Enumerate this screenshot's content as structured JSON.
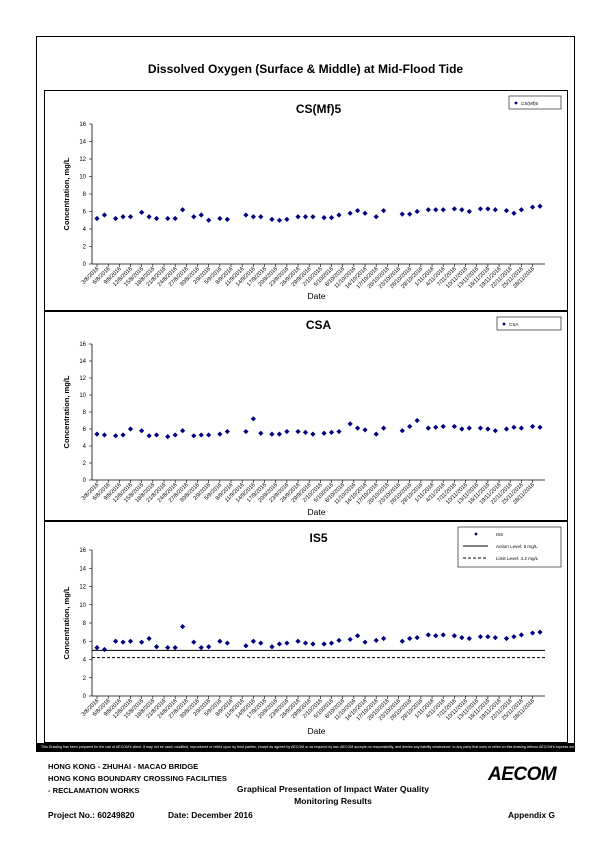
{
  "title": "Dissolved Oxygen (Surface & Middle) at Mid-Flood Tide",
  "disclaimer": "This Drawing has been prepared for the use of AECOM's client. It may not be used, modified, reproduced or relied upon by third parties, except as agreed by AECOM or as required by law. AECOM accepts no responsibility, and denies any liability whatsoever, to any party that uses or relies on this drawing without AECOM's express written consent.",
  "footer": {
    "line1": "HONG KONG - ZHUHAI - MACAO BRIDGE",
    "line2": "HONG KONG BOUNDARY CROSSING FACILITIES",
    "line3": "- RECLAMATION WORKS",
    "center1": "Graphical Presentation of Impact Water Quality",
    "center2": "Monitoring Results",
    "project": "Project No.: 60249820",
    "date": "Date: December 2016",
    "appendix": "Appendix G",
    "logo": "AECOM"
  },
  "colors": {
    "marker": "#000080",
    "line": "#000000",
    "border": "#000000"
  },
  "chart_data": [
    {
      "type": "scatter",
      "title": "CS(Mf)5",
      "xlabel": "Date",
      "ylabel": "Concentration, mg/L",
      "ylim": [
        0,
        16
      ],
      "yticks": [
        0,
        2,
        4,
        6,
        8,
        10,
        12,
        14,
        16
      ],
      "grid": false,
      "legend_position": "top-right",
      "tick_labels": [
        "3/8/2016",
        "6/8/2016",
        "9/8/2016",
        "12/8/2016",
        "15/8/2016",
        "18/8/2016",
        "21/8/2016",
        "24/8/2016",
        "27/8/2016",
        "30/8/2016",
        "2/9/2016",
        "5/9/2016",
        "8/9/2016",
        "11/9/2016",
        "14/9/2016",
        "17/9/2016",
        "20/9/2016",
        "23/9/2016",
        "26/9/2016",
        "29/9/2016",
        "2/10/2016",
        "5/10/2016",
        "8/10/2016",
        "11/10/2016",
        "14/10/2016",
        "17/10/2016",
        "20/10/2016",
        "23/10/2016",
        "26/10/2016",
        "29/10/2016",
        "1/11/2016",
        "4/11/2016",
        "7/11/2016",
        "10/11/2016",
        "13/11/2016",
        "16/11/2016",
        "19/11/2016",
        "22/11/2016",
        "25/11/2016",
        "28/11/2016"
      ],
      "series": [
        {
          "name": "CS(Mf)5",
          "marker": "diamond",
          "x": [
            "3/8/2016",
            "5/8/2016",
            "8/8/2016",
            "10/8/2016",
            "12/8/2016",
            "15/8/2016",
            "17/8/2016",
            "19/8/2016",
            "22/8/2016",
            "24/8/2016",
            "26/8/2016",
            "29/8/2016",
            "31/8/2016",
            "2/9/2016",
            "5/9/2016",
            "7/9/2016",
            "12/9/2016",
            "14/9/2016",
            "16/9/2016",
            "19/9/2016",
            "21/9/2016",
            "23/9/2016",
            "26/9/2016",
            "28/9/2016",
            "30/9/2016",
            "3/10/2016",
            "5/10/2016",
            "7/10/2016",
            "10/10/2016",
            "12/10/2016",
            "14/10/2016",
            "17/10/2016",
            "19/10/2016",
            "24/10/2016",
            "26/10/2016",
            "28/10/2016",
            "31/10/2016",
            "2/11/2016",
            "4/11/2016",
            "7/11/2016",
            "9/11/2016",
            "11/11/2016",
            "14/11/2016",
            "16/11/2016",
            "18/11/2016",
            "21/11/2016",
            "23/11/2016",
            "25/11/2016",
            "28/11/2016",
            "30/11/2016"
          ],
          "y": [
            5.2,
            5.6,
            5.2,
            5.4,
            5.4,
            5.9,
            5.4,
            5.2,
            5.2,
            5.2,
            6.2,
            5.4,
            5.6,
            5.0,
            5.2,
            5.1,
            5.6,
            5.4,
            5.4,
            5.1,
            5.0,
            5.1,
            5.4,
            5.4,
            5.4,
            5.3,
            5.3,
            5.6,
            5.8,
            6.1,
            5.8,
            5.4,
            6.1,
            5.7,
            5.7,
            6.0,
            6.2,
            6.2,
            6.2,
            6.3,
            6.2,
            6.0,
            6.3,
            6.3,
            6.2,
            6.1,
            5.8,
            6.2,
            6.5,
            6.6
          ]
        }
      ]
    },
    {
      "type": "scatter",
      "title": "CSA",
      "xlabel": "Date",
      "ylabel": "Concentration, mg/L",
      "ylim": [
        0,
        16
      ],
      "yticks": [
        0,
        2,
        4,
        6,
        8,
        10,
        12,
        14,
        16
      ],
      "grid": false,
      "legend_position": "top-right",
      "tick_labels": [
        "3/8/2016",
        "6/8/2016",
        "9/8/2016",
        "12/8/2016",
        "15/8/2016",
        "18/8/2016",
        "21/8/2016",
        "24/8/2016",
        "27/8/2016",
        "30/8/2016",
        "2/9/2016",
        "5/9/2016",
        "8/9/2016",
        "11/9/2016",
        "14/9/2016",
        "17/9/2016",
        "20/9/2016",
        "23/9/2016",
        "26/9/2016",
        "29/9/2016",
        "2/10/2016",
        "5/10/2016",
        "8/10/2016",
        "11/10/2016",
        "14/10/2016",
        "17/10/2016",
        "20/10/2016",
        "23/10/2016",
        "26/10/2016",
        "29/10/2016",
        "1/11/2016",
        "4/11/2016",
        "7/11/2016",
        "10/11/2016",
        "13/11/2016",
        "16/11/2016",
        "19/11/2016",
        "22/11/2016",
        "25/11/2016",
        "28/11/2016"
      ],
      "series": [
        {
          "name": "CSA",
          "marker": "diamond",
          "x": [
            "3/8/2016",
            "5/8/2016",
            "8/8/2016",
            "10/8/2016",
            "12/8/2016",
            "15/8/2016",
            "17/8/2016",
            "19/8/2016",
            "22/8/2016",
            "24/8/2016",
            "26/8/2016",
            "29/8/2016",
            "31/8/2016",
            "2/9/2016",
            "5/9/2016",
            "7/9/2016",
            "12/9/2016",
            "14/9/2016",
            "16/9/2016",
            "19/9/2016",
            "21/9/2016",
            "23/9/2016",
            "26/9/2016",
            "28/9/2016",
            "30/9/2016",
            "3/10/2016",
            "5/10/2016",
            "7/10/2016",
            "10/10/2016",
            "12/10/2016",
            "14/10/2016",
            "17/10/2016",
            "19/10/2016",
            "24/10/2016",
            "26/10/2016",
            "28/10/2016",
            "31/10/2016",
            "2/11/2016",
            "4/11/2016",
            "7/11/2016",
            "9/11/2016",
            "11/11/2016",
            "14/11/2016",
            "16/11/2016",
            "18/11/2016",
            "21/11/2016",
            "23/11/2016",
            "25/11/2016",
            "28/11/2016",
            "30/11/2016"
          ],
          "y": [
            5.4,
            5.3,
            5.2,
            5.3,
            6.0,
            5.8,
            5.2,
            5.3,
            5.1,
            5.3,
            5.8,
            5.2,
            5.3,
            5.3,
            5.4,
            5.7,
            5.7,
            7.2,
            5.5,
            5.4,
            5.4,
            5.7,
            5.7,
            5.6,
            5.4,
            5.5,
            5.6,
            5.7,
            6.6,
            6.1,
            5.9,
            5.4,
            6.1,
            5.8,
            6.3,
            7.0,
            6.1,
            6.2,
            6.3,
            6.3,
            6.0,
            6.1,
            6.1,
            6.0,
            5.8,
            6.0,
            6.2,
            6.1,
            6.3,
            6.2
          ]
        }
      ]
    },
    {
      "type": "scatter",
      "title": "IS5",
      "xlabel": "Date",
      "ylabel": "Concentration, mg/L",
      "ylim": [
        0,
        16
      ],
      "yticks": [
        0,
        2,
        4,
        6,
        8,
        10,
        12,
        14,
        16
      ],
      "grid": false,
      "legend_position": "top-right",
      "tick_labels": [
        "3/8/2016",
        "6/8/2016",
        "9/8/2016",
        "12/8/2016",
        "15/8/2016",
        "18/8/2016",
        "21/8/2016",
        "24/8/2016",
        "27/8/2016",
        "30/8/2016",
        "2/9/2016",
        "5/9/2016",
        "8/9/2016",
        "11/9/2016",
        "14/9/2016",
        "17/9/2016",
        "20/9/2016",
        "23/9/2016",
        "26/9/2016",
        "29/9/2016",
        "2/10/2016",
        "5/10/2016",
        "8/10/2016",
        "11/10/2016",
        "14/10/2016",
        "17/10/2016",
        "20/10/2016",
        "23/10/2016",
        "26/10/2016",
        "29/10/2016",
        "1/11/2016",
        "4/11/2016",
        "7/11/2016",
        "10/11/2016",
        "13/11/2016",
        "16/11/2016",
        "19/11/2016",
        "22/11/2016",
        "25/11/2016",
        "28/11/2016"
      ],
      "series": [
        {
          "name": "IS5",
          "marker": "diamond",
          "x": [
            "3/8/2016",
            "5/8/2016",
            "8/8/2016",
            "10/8/2016",
            "12/8/2016",
            "15/8/2016",
            "17/8/2016",
            "19/8/2016",
            "22/8/2016",
            "24/8/2016",
            "26/8/2016",
            "29/8/2016",
            "31/8/2016",
            "2/9/2016",
            "5/9/2016",
            "7/9/2016",
            "12/9/2016",
            "14/9/2016",
            "16/9/2016",
            "19/9/2016",
            "21/9/2016",
            "23/9/2016",
            "26/9/2016",
            "28/9/2016",
            "30/9/2016",
            "3/10/2016",
            "5/10/2016",
            "7/10/2016",
            "10/10/2016",
            "12/10/2016",
            "14/10/2016",
            "17/10/2016",
            "19/10/2016",
            "24/10/2016",
            "26/10/2016",
            "28/10/2016",
            "31/10/2016",
            "2/11/2016",
            "4/11/2016",
            "7/11/2016",
            "9/11/2016",
            "11/11/2016",
            "14/11/2016",
            "16/11/2016",
            "18/11/2016",
            "21/11/2016",
            "23/11/2016",
            "25/11/2016",
            "28/11/2016",
            "30/11/2016"
          ],
          "y": [
            5.3,
            5.1,
            6.0,
            5.9,
            6.0,
            5.9,
            6.3,
            5.4,
            5.3,
            5.3,
            7.6,
            5.9,
            5.3,
            5.4,
            6.0,
            5.8,
            5.5,
            6.0,
            5.8,
            5.4,
            5.7,
            5.8,
            6.0,
            5.8,
            5.7,
            5.7,
            5.8,
            6.1,
            6.2,
            6.6,
            5.9,
            6.1,
            6.3,
            6.0,
            6.3,
            6.4,
            6.7,
            6.6,
            6.7,
            6.6,
            6.4,
            6.3,
            6.5,
            6.5,
            6.4,
            6.3,
            6.5,
            6.7,
            6.9,
            7.0
          ]
        },
        {
          "name": "Action Level: 5 mg/L",
          "type": "hline",
          "style": "solid",
          "value": 5
        },
        {
          "name": "Limit Level: 4.2 mg/L",
          "type": "hline",
          "style": "dashed",
          "value": 4.2
        }
      ]
    }
  ]
}
